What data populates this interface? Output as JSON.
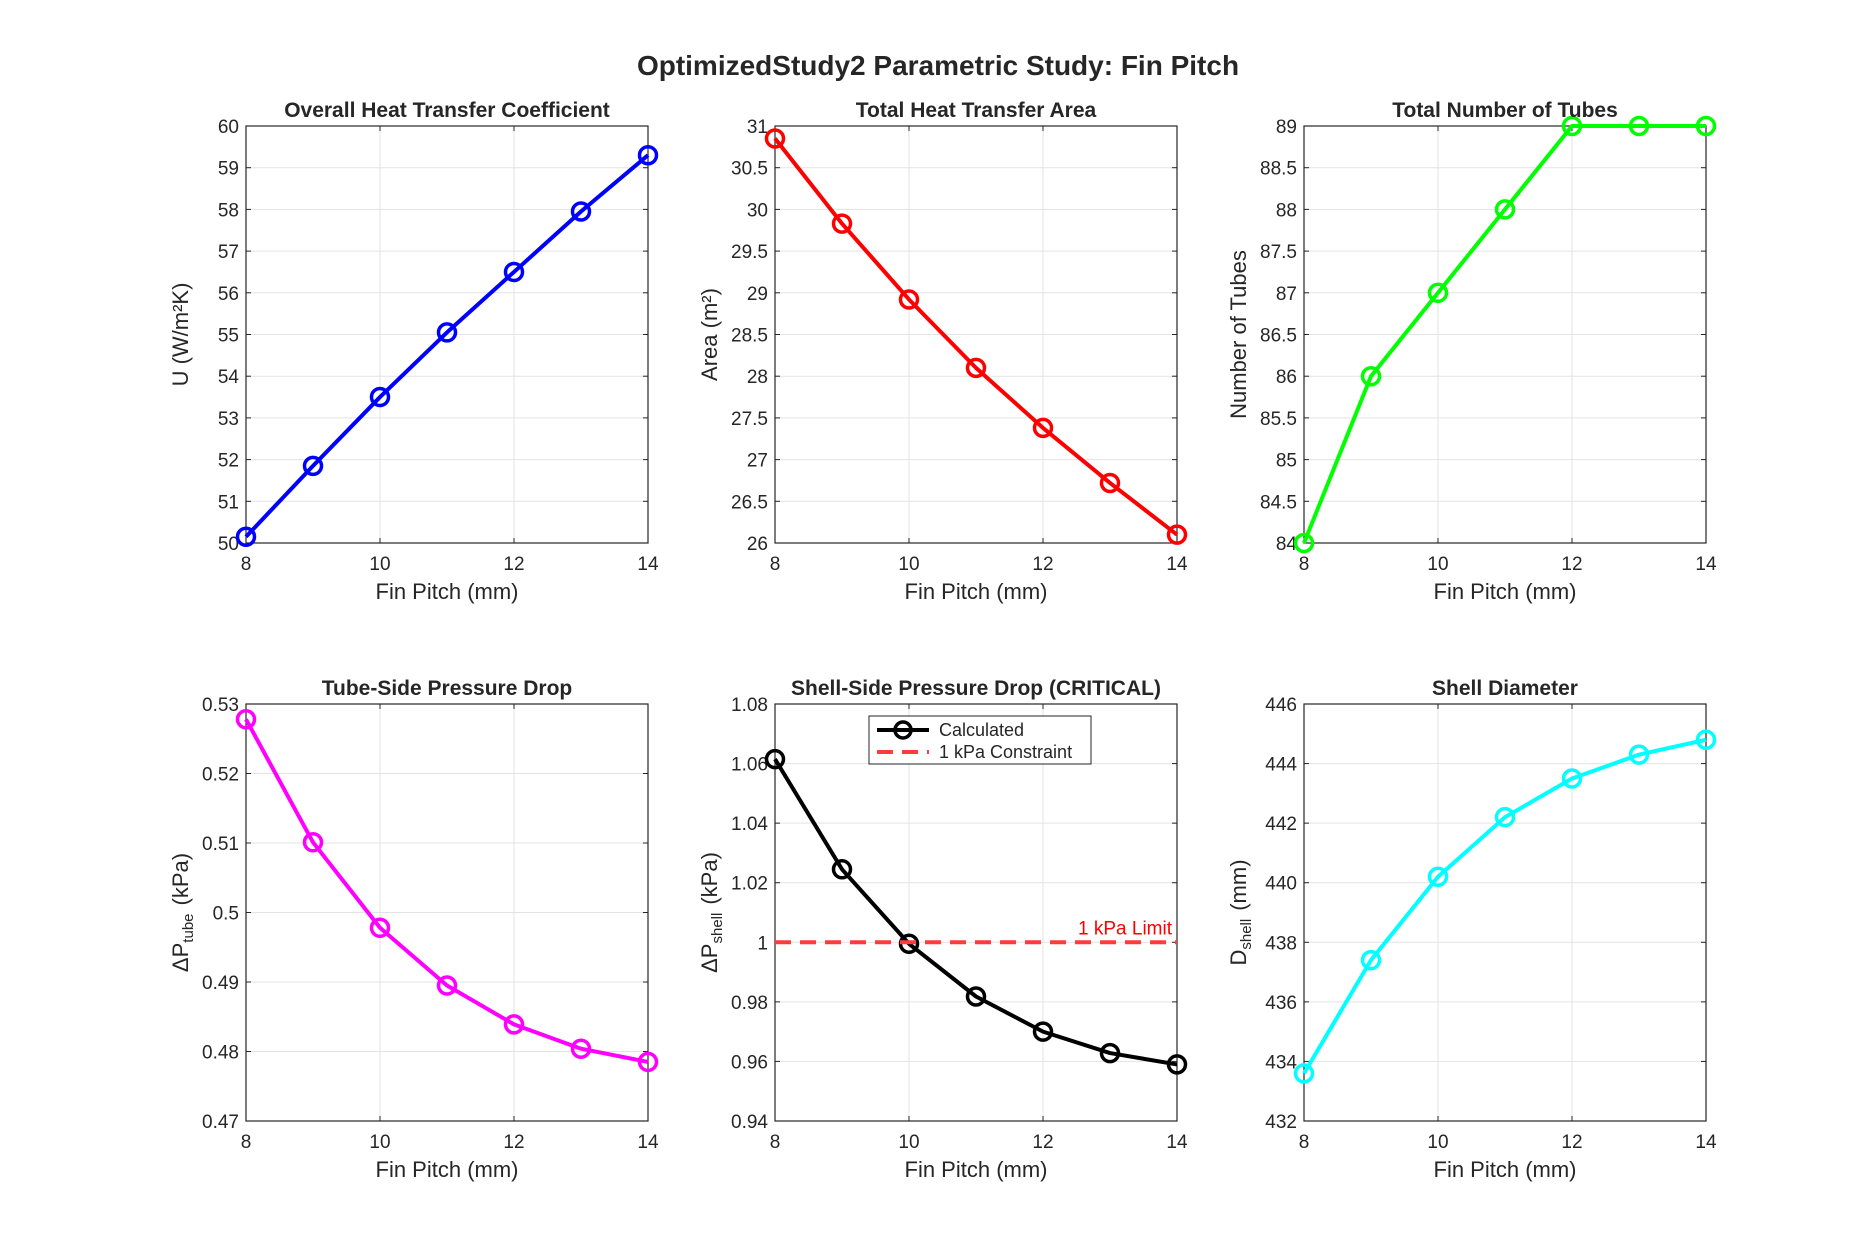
{
  "figure_title": "OptimizedStudy2 Parametric Study: Fin Pitch",
  "chart_data": [
    {
      "type": "line",
      "title": "Overall Heat Transfer Coefficient",
      "xlabel": "Fin Pitch (mm)",
      "ylabel": "U (W/m²K)",
      "xlim": [
        8,
        14
      ],
      "ylim": [
        50,
        60
      ],
      "xticks": [
        "8",
        "10",
        "12",
        "14"
      ],
      "yticks": [
        "50",
        "51",
        "52",
        "53",
        "54",
        "55",
        "56",
        "57",
        "58",
        "59",
        "60"
      ],
      "grid": true,
      "series": [
        {
          "color": "#0000ff",
          "marker": "circle",
          "x": [
            8,
            9,
            10,
            11,
            12,
            13,
            14
          ],
          "y": [
            50.15,
            51.85,
            53.5,
            55.05,
            56.5,
            57.95,
            59.3
          ]
        }
      ]
    },
    {
      "type": "line",
      "title": "Total Heat Transfer Area",
      "xlabel": "Fin Pitch (mm)",
      "ylabel": "Area (m²)",
      "xlim": [
        8,
        14
      ],
      "ylim": [
        26,
        31
      ],
      "xticks": [
        "8",
        "10",
        "12",
        "14"
      ],
      "yticks": [
        "26",
        "26.5",
        "27",
        "27.5",
        "28",
        "28.5",
        "29",
        "29.5",
        "30",
        "30.5",
        "31"
      ],
      "grid": true,
      "series": [
        {
          "color": "#ff0000",
          "marker": "circle",
          "x": [
            8,
            9,
            10,
            11,
            12,
            13,
            14
          ],
          "y": [
            30.85,
            29.83,
            28.92,
            28.1,
            27.38,
            26.72,
            26.1
          ]
        }
      ]
    },
    {
      "type": "line",
      "title": "Total Number of Tubes",
      "xlabel": "Fin Pitch (mm)",
      "ylabel": "Number of Tubes",
      "xlim": [
        8,
        14
      ],
      "ylim": [
        84,
        89
      ],
      "xticks": [
        "8",
        "10",
        "12",
        "14"
      ],
      "yticks": [
        "84",
        "84.5",
        "85",
        "85.5",
        "86",
        "86.5",
        "87",
        "87.5",
        "88",
        "88.5",
        "89"
      ],
      "grid": true,
      "series": [
        {
          "color": "#00ff00",
          "marker": "circle",
          "x": [
            8,
            9,
            10,
            11,
            12,
            13,
            14
          ],
          "y": [
            84,
            86,
            87,
            88,
            89,
            89,
            89
          ]
        }
      ]
    },
    {
      "type": "line",
      "title": "Tube-Side Pressure Drop",
      "xlabel": "Fin Pitch (mm)",
      "ylabel": "ΔP",
      "ylabel_sub": "tube",
      "ylabel_unit": "(kPa)",
      "xlim": [
        8,
        14
      ],
      "ylim": [
        0.47,
        0.53
      ],
      "xticks": [
        "8",
        "10",
        "12",
        "14"
      ],
      "yticks": [
        "0.47",
        "0.48",
        "0.49",
        "0.5",
        "0.51",
        "0.52",
        "0.53"
      ],
      "grid": true,
      "series": [
        {
          "color": "#ff00ff",
          "marker": "circle",
          "x": [
            8,
            9,
            10,
            11,
            12,
            13,
            14
          ],
          "y": [
            0.5278,
            0.5101,
            0.4978,
            0.4895,
            0.4839,
            0.4804,
            0.4785
          ]
        }
      ]
    },
    {
      "type": "line",
      "title": "Shell-Side Pressure Drop (CRITICAL)",
      "xlabel": "Fin Pitch (mm)",
      "ylabel": "ΔP",
      "ylabel_sub": "shell",
      "ylabel_unit": "(kPa)",
      "xlim": [
        8,
        14
      ],
      "ylim": [
        0.94,
        1.08
      ],
      "xticks": [
        "8",
        "10",
        "12",
        "14"
      ],
      "yticks": [
        "0.94",
        "0.96",
        "0.98",
        "1",
        "1.02",
        "1.04",
        "1.06",
        "1.08"
      ],
      "grid": true,
      "legend": "top-center",
      "series": [
        {
          "name": "Calculated",
          "color": "#000000",
          "marker": "circle",
          "x": [
            8,
            9,
            10,
            11,
            12,
            13,
            14
          ],
          "y": [
            1.0615,
            1.0245,
            0.9995,
            0.9818,
            0.97,
            0.9628,
            0.959
          ]
        },
        {
          "name": "1 kPa Constraint",
          "color": "#ff3b3b",
          "dashed": true,
          "x": [
            8,
            14
          ],
          "y": [
            1,
            1
          ]
        }
      ],
      "annotation": {
        "text": "1 kPa Limit",
        "x": 14,
        "y": 1,
        "color": "#ff0000"
      }
    },
    {
      "type": "line",
      "title": "Shell Diameter",
      "xlabel": "Fin Pitch (mm)",
      "ylabel": "D",
      "ylabel_sub": "shell",
      "ylabel_unit": "(mm)",
      "xlim": [
        8,
        14
      ],
      "ylim": [
        432,
        446
      ],
      "xticks": [
        "8",
        "10",
        "12",
        "14"
      ],
      "yticks": [
        "432",
        "434",
        "436",
        "438",
        "440",
        "442",
        "444",
        "446"
      ],
      "grid": true,
      "series": [
        {
          "color": "#00ffff",
          "marker": "circle",
          "x": [
            8,
            9,
            10,
            11,
            12,
            13,
            14
          ],
          "y": [
            433.6,
            437.4,
            440.2,
            442.2,
            443.5,
            444.3,
            444.8
          ]
        }
      ]
    }
  ]
}
